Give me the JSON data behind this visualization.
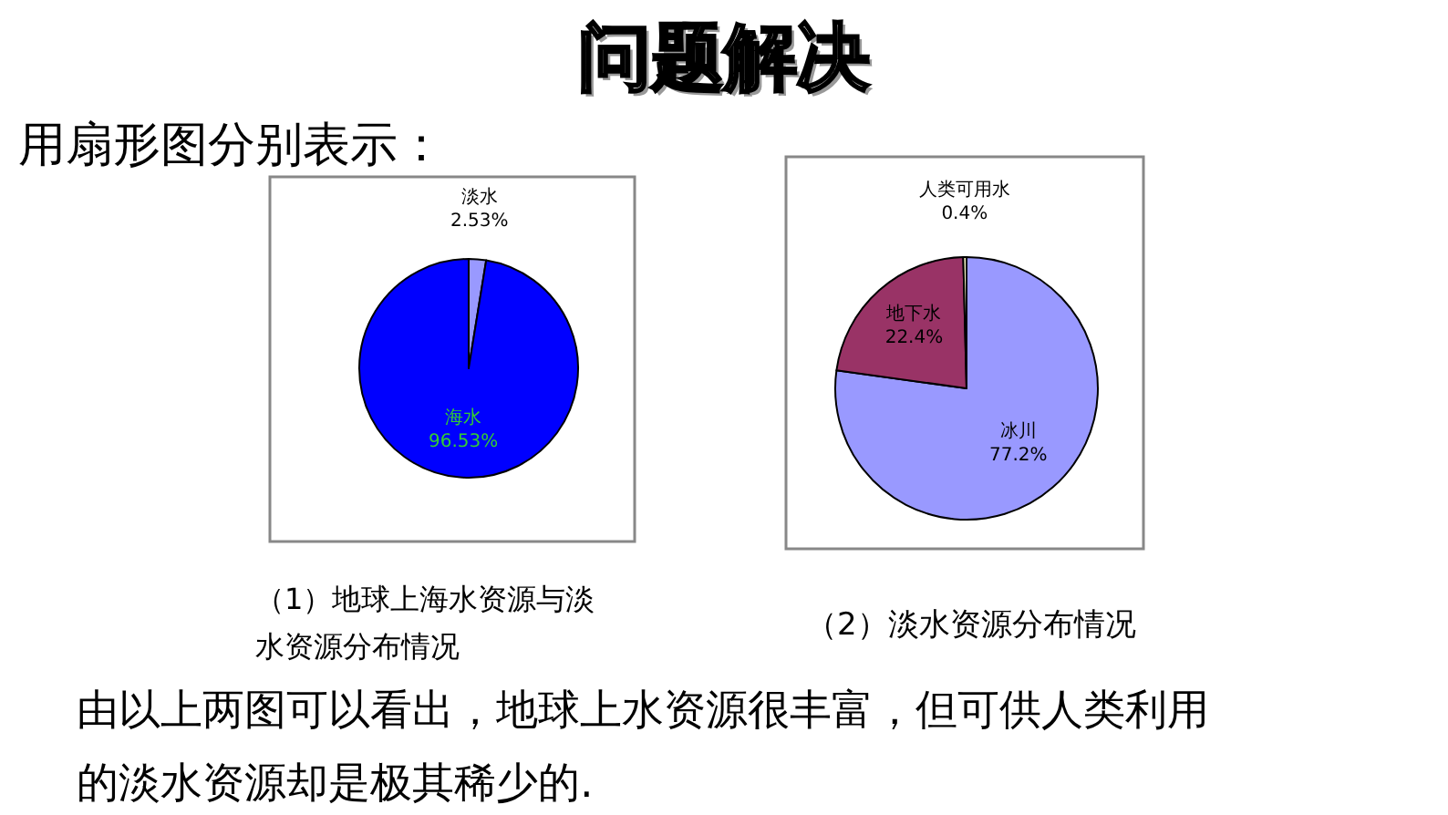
{
  "chart_data": [
    {
      "type": "pie",
      "title": "问题解决",
      "subtitle": "用扇形图分别表示：",
      "categories": [
        "淡水",
        "海水"
      ],
      "values": [
        2.53,
        96.53
      ],
      "value_labels": [
        "2.53%",
        "96.53%"
      ],
      "colors": [
        "#9999ff",
        "#0000ff"
      ],
      "annotations": [
        "（1）地球上海水资源与淡水资源分布情况"
      ]
    },
    {
      "type": "pie",
      "categories": [
        "冰川",
        "地下水",
        "人类可用水"
      ],
      "values": [
        77.2,
        22.4,
        0.4
      ],
      "value_labels": [
        "77.2%",
        "22.4%",
        "0.4%"
      ],
      "colors": [
        "#9999ff",
        "#993366",
        "#ffffcc"
      ],
      "annotations": [
        "（2）淡水资源分布情况",
        "由以上两图可以看出，地球上水资源很丰富，但可供人类利用的淡水资源却是极其稀少的."
      ]
    }
  ]
}
